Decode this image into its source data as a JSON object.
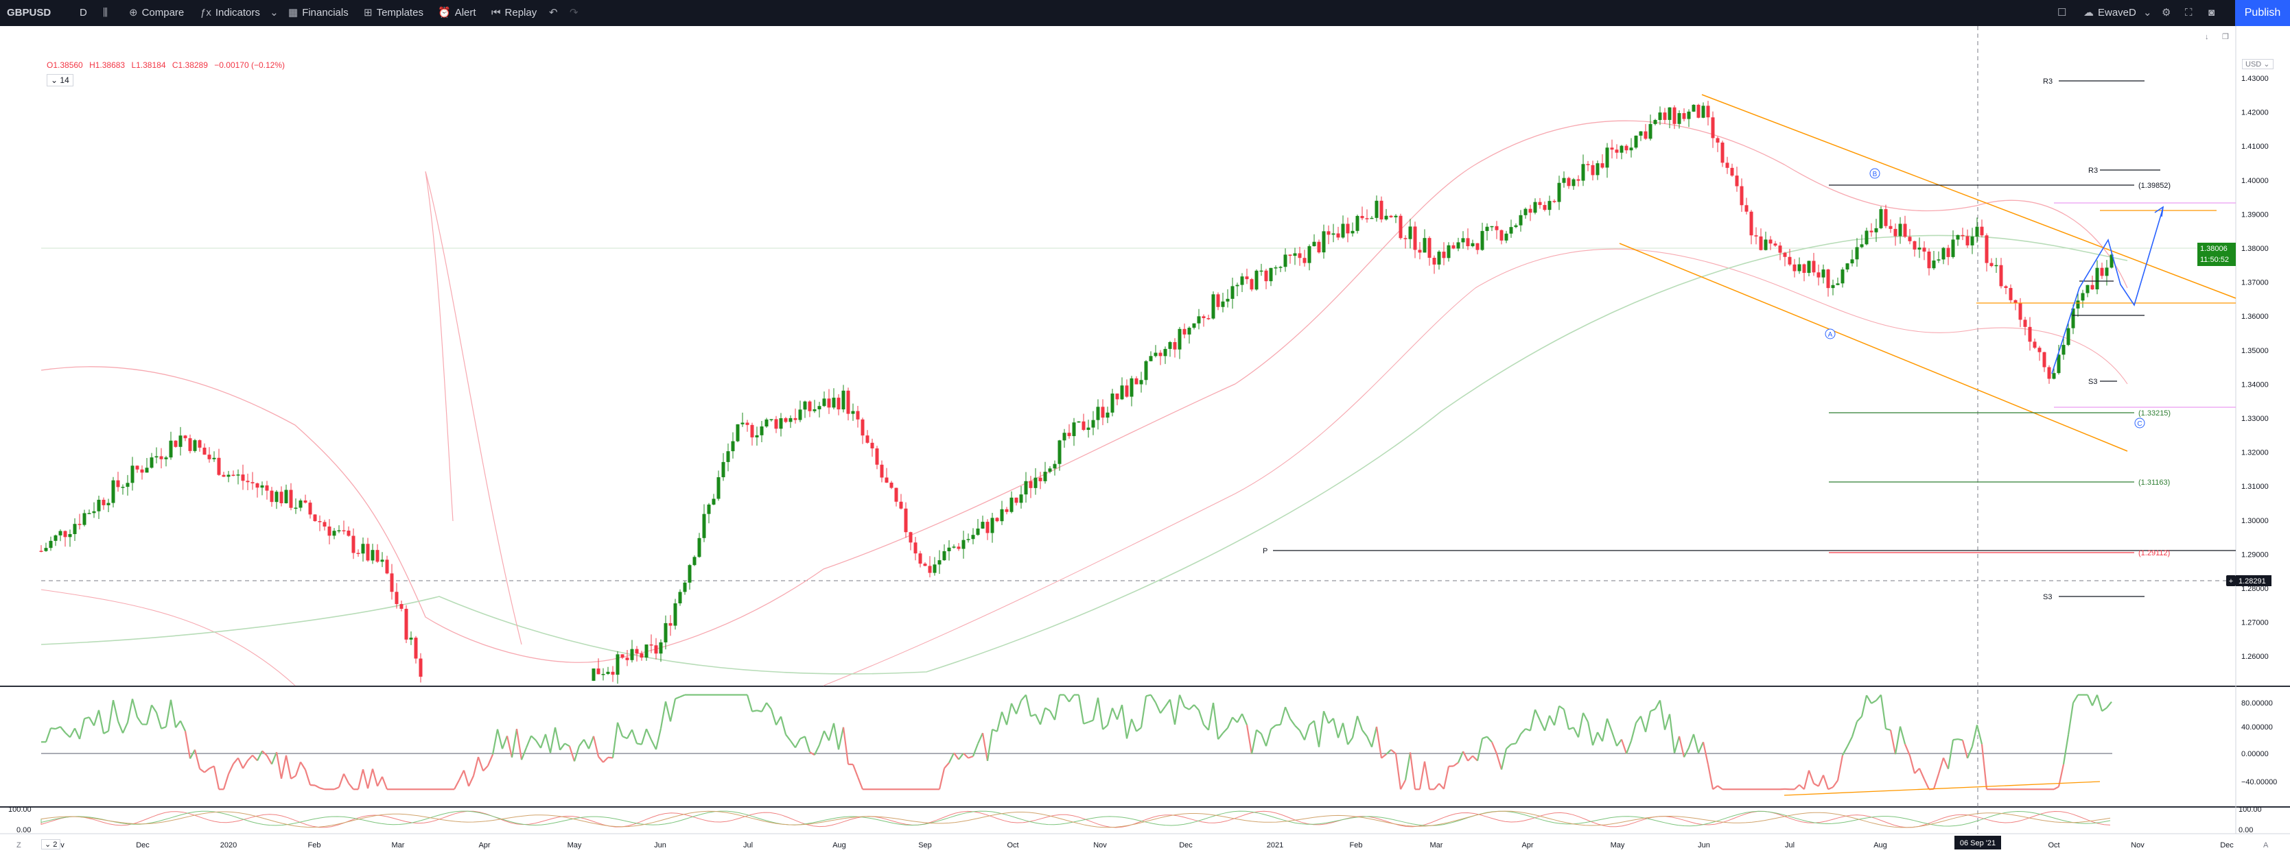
{
  "toolbar": {
    "symbol": "GBPUSD",
    "interval": "D",
    "compare": "Compare",
    "indicators": "Indicators",
    "financials": "Financials",
    "templates": "Templates",
    "alert": "Alert",
    "replay": "Replay",
    "account": "EwaveD",
    "publish": "Publish"
  },
  "legend": {
    "open": "O1.38560",
    "high": "H1.38683",
    "low": "L1.38184",
    "close": "C1.38289",
    "change": "−0.00170 (−0.12%)",
    "length_setting": "14"
  },
  "price_axis": {
    "currency": "USD",
    "ticks": [
      "1.43000",
      "1.42000",
      "1.41000",
      "1.40000",
      "1.39000",
      "1.38000",
      "1.37000",
      "1.36000",
      "1.35000",
      "1.34000",
      "1.33000",
      "1.32000",
      "1.31000",
      "1.30000",
      "1.29000",
      "1.28000",
      "1.27000",
      "1.26000"
    ],
    "last_price": "1.38006",
    "countdown": "11:50:52",
    "crosshair_price": "1.28291"
  },
  "osc_axis": {
    "ticks": [
      "80.00000",
      "40.00000",
      "0.00000",
      "−40.00000"
    ]
  },
  "osc2_axis": {
    "ticks": [
      "100.00",
      "0.00"
    ],
    "left_ticks": [
      "100.00",
      "0.00"
    ],
    "setting": "2"
  },
  "time_axis": {
    "labels": [
      "Nov",
      "Dec",
      "2020",
      "Feb",
      "Mar",
      "Apr",
      "May",
      "Jun",
      "Jul",
      "Aug",
      "Sep",
      "Oct",
      "Nov",
      "Dec",
      "2021",
      "Feb",
      "Mar",
      "Apr",
      "May",
      "Jun",
      "Jul",
      "Aug",
      "Sep",
      "Oct",
      "Nov",
      "Dec"
    ],
    "crosshair_date": "06 Sep '21"
  },
  "annotations": {
    "pivot_r3_top": "R3",
    "pivot_r3": "R3",
    "pivot_s3": "S3",
    "pivot_p": "P",
    "pivot_s3_bottom": "S3",
    "level_1": "(1.39852)",
    "level_2": "(1.33215)",
    "level_3": "(1.31163)",
    "level_4": "(1.29112)",
    "wave_a": "A",
    "wave_b": "B",
    "wave_c": "C"
  },
  "colors": {
    "bull": "#089981",
    "bull_candle": "#1b8a1b",
    "bear": "#f23645",
    "channel": "#ff9800",
    "projection": "#2962ff",
    "topbar": "#131722",
    "publish": "#2962ff"
  },
  "chart_data": {
    "type": "candlestick",
    "symbol": "GBPUSD",
    "timeframe": "D",
    "price_range": [
      1.25,
      1.435
    ],
    "ohlc_last": {
      "open": 1.3856,
      "high": 1.38683,
      "low": 1.38184,
      "close": 1.38289
    },
    "close_path": [
      [
        "Nov",
        1.291
      ],
      [
        "Dec",
        1.309
      ],
      [
        "Dec",
        1.325
      ],
      [
        "2020",
        1.314
      ],
      [
        "Feb",
        1.305
      ],
      [
        "Mar",
        1.286
      ],
      [
        "Mar",
        1.24
      ],
      [
        "Jul",
        1.262
      ],
      [
        "Aug",
        1.325
      ],
      [
        "Sep",
        1.336
      ],
      [
        "Sep",
        1.285
      ],
      [
        "Oct",
        1.293
      ],
      [
        "Nov",
        1.301
      ],
      [
        "Nov",
        1.325
      ],
      [
        "Dec",
        1.338
      ],
      [
        "2021",
        1.366
      ],
      [
        "Feb",
        1.378
      ],
      [
        "Mar",
        1.392
      ],
      [
        "Mar",
        1.378
      ],
      [
        "Apr",
        1.385
      ],
      [
        "May",
        1.418
      ],
      [
        "Jun",
        1.42
      ],
      [
        "Jul",
        1.382
      ],
      [
        "Jul",
        1.369
      ],
      [
        "Aug",
        1.39
      ],
      [
        "Aug",
        1.377
      ],
      [
        "Sep",
        1.384
      ],
      [
        "Oct",
        1.343
      ],
      [
        "Oct",
        1.36
      ],
      [
        "Oct",
        1.38
      ]
    ],
    "oscillator": {
      "ylim": [
        -60,
        100
      ],
      "ticks": [
        80,
        40,
        0,
        -40
      ]
    }
  }
}
